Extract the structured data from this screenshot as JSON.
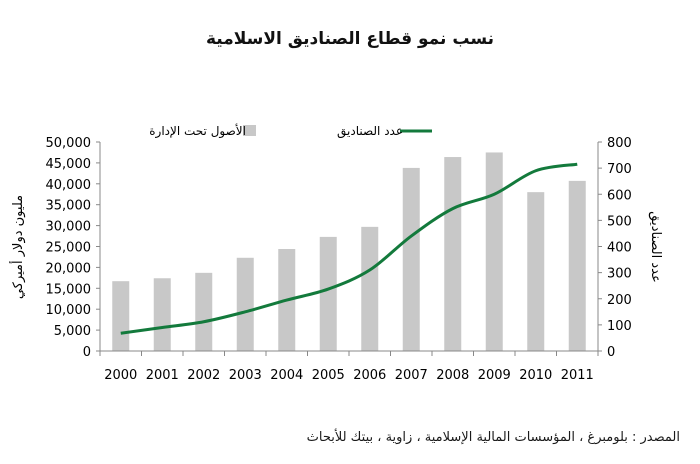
{
  "chart_data": {
    "type": "bar",
    "title": "نسب نمو قطاع الصناديق الاسلامية",
    "categories": [
      "2000",
      "2001",
      "2002",
      "2003",
      "2004",
      "2005",
      "2006",
      "2007",
      "2008",
      "2009",
      "2010",
      "2011"
    ],
    "series": [
      {
        "name": "الأصول تحت الإدارة",
        "type": "bar",
        "axis": "left",
        "color": "#c8c8c8",
        "values": [
          16700,
          17400,
          18700,
          22300,
          24400,
          27300,
          29700,
          43800,
          46400,
          47500,
          38000,
          40700
        ]
      },
      {
        "name": "عدد الصناديق",
        "type": "line",
        "axis": "right",
        "color": "#137a3c",
        "values": [
          68,
          90,
          112,
          150,
          195,
          237,
          310,
          440,
          545,
          600,
          690,
          715
        ]
      }
    ],
    "y_left": {
      "label": "مليون دولار أميركي",
      "range": [
        0,
        50000
      ],
      "ticks": [
        "0",
        "5,000",
        "10,000",
        "15,000",
        "20,000",
        "25,000",
        "30,000",
        "35,000",
        "40,000",
        "45,000",
        "50,000"
      ]
    },
    "y_right": {
      "label": "عدد الصناديق",
      "range": [
        0,
        800
      ],
      "ticks": [
        "0",
        "100",
        "200",
        "300",
        "400",
        "500",
        "600",
        "700",
        "800"
      ]
    },
    "grid": false,
    "legend_position": "top"
  },
  "source": "المصدر : بلومبرغ ، المؤسسات المالية الإسلامية ، زاوية ، بيتك للأبحاث"
}
